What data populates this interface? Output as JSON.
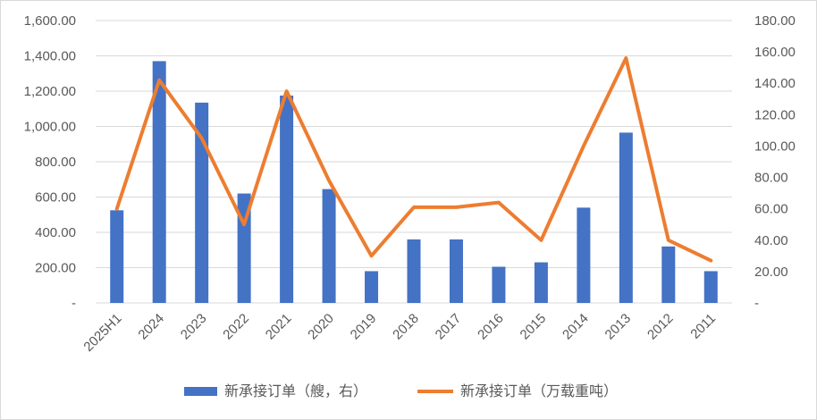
{
  "chart_data": {
    "type": "bar",
    "categories": [
      "2025H1",
      "2024",
      "2023",
      "2022",
      "2021",
      "2020",
      "2019",
      "2018",
      "2017",
      "2016",
      "2015",
      "2014",
      "2013",
      "2012",
      "2011"
    ],
    "series": [
      {
        "name": "新承接订单（艘，右）",
        "type": "bar",
        "axis": "left",
        "color": "#4472c4",
        "values": [
          525,
          1370,
          1135,
          620,
          1175,
          645,
          180,
          360,
          360,
          205,
          230,
          540,
          965,
          320,
          180
        ]
      },
      {
        "name": "新承接订单（万载重吨）",
        "type": "line",
        "axis": "right",
        "color": "#ed7d31",
        "values": [
          60,
          142,
          105,
          50,
          135,
          78,
          30,
          61,
          61,
          64,
          40,
          100,
          156,
          40,
          27
        ]
      }
    ],
    "y_left": {
      "ylim": [
        0,
        1600
      ],
      "ticks": [
        0,
        200,
        400,
        600,
        800,
        1000,
        1200,
        1400,
        1600
      ],
      "tick_labels": [
        "-",
        "200.00",
        "400.00",
        "600.00",
        "800.00",
        "1,000.00",
        "1,200.00",
        "1,400.00",
        "1,600.00"
      ]
    },
    "y_right": {
      "ylim": [
        0,
        180
      ],
      "ticks": [
        0,
        20,
        40,
        60,
        80,
        100,
        120,
        140,
        160,
        180
      ],
      "tick_labels": [
        "-",
        "20.00",
        "40.00",
        "60.00",
        "80.00",
        "100.00",
        "120.00",
        "140.00",
        "160.00",
        "180.00"
      ]
    },
    "grid": true,
    "legend": "bottom"
  }
}
